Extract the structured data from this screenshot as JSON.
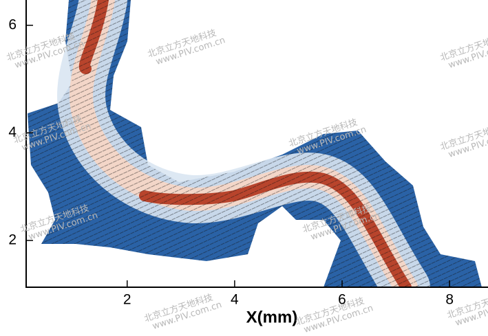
{
  "chart_data": {
    "type": "vector-field",
    "x_label": "X(mm)",
    "xlim": [
      0.12,
      8.6
    ],
    "xticks": [
      2,
      4,
      6,
      8
    ],
    "ylim": [
      1.13,
      6.47
    ],
    "yticks": [
      2,
      4,
      6
    ],
    "watermark": {
      "text": "北京立方天地科技",
      "url": "www.PIV.com.cn"
    }
  }
}
